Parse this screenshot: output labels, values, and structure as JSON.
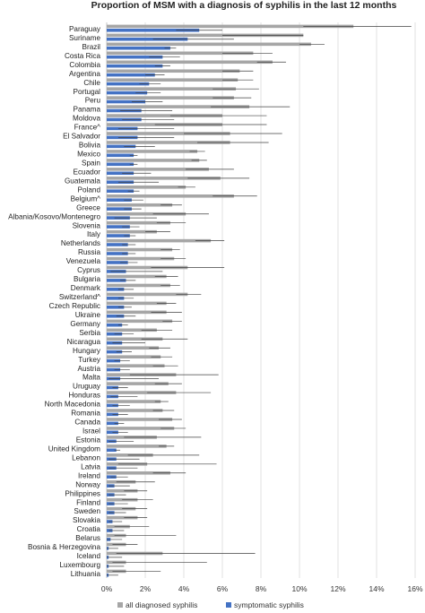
{
  "chart_data": {
    "type": "bar",
    "orientation": "horizontal",
    "title": "Proportion of MSM with a diagnosis of syphilis in the last 12 months",
    "xlim": [
      0,
      16
    ],
    "x_ticks": [
      0,
      2,
      4,
      6,
      8,
      10,
      12,
      14,
      16
    ],
    "x_tick_labels": [
      "0%",
      "2%",
      "4%",
      "6%",
      "8%",
      "10%",
      "12%",
      "14%",
      "16%"
    ],
    "grid": "vertical",
    "error_bars": true,
    "legend_position": "bottom",
    "categories": [
      "Paraguay",
      "Suriname",
      "Brazil",
      "Costa Rica",
      "Colombia",
      "Argentina",
      "Chile",
      "Portugal",
      "Peru",
      "Panama",
      "Moldova",
      "France^",
      "El Salvador",
      "Bolivia",
      "Mexico",
      "Spain",
      "Ecuador",
      "Guatemala",
      "Poland",
      "Belgium^",
      "Greece",
      "Albania/Kosovo/Montenegro",
      "Slovenia",
      "Italy",
      "Netherlands",
      "Russia",
      "Venezuela",
      "Cyprus",
      "Bulgaria",
      "Denmark",
      "Switzerland^",
      "Czech Republic",
      "Ukraine",
      "Germany",
      "Serbia",
      "Nicaragua",
      "Hungary",
      "Turkey",
      "Austria",
      "Malta",
      "Uruguay",
      "Honduras",
      "North Macedonia",
      "Romania",
      "Canada",
      "Israel",
      "Estonia",
      "United Kingdom",
      "Lebanon",
      "Latvia",
      "Ireland",
      "Norway",
      "Philippines",
      "Finland",
      "Sweden",
      "Slovakia",
      "Croatia",
      "Belarus",
      "Bosnia & Herzegovina",
      "Iceland",
      "Luxembourg",
      "Lithuania"
    ],
    "series": [
      {
        "name": "all diagnosed syphilis",
        "color": "#a6a6a6",
        "values": [
          12.8,
          10.2,
          10.6,
          7.6,
          8.6,
          6.9,
          6.8,
          6.7,
          6.6,
          7.4,
          6.0,
          6.0,
          6.4,
          6.4,
          4.7,
          4.8,
          5.3,
          5.9,
          4.1,
          6.6,
          3.4,
          4.1,
          3.3,
          2.6,
          5.4,
          3.4,
          3.5,
          4.2,
          3.1,
          3.3,
          4.2,
          3.1,
          3.1,
          3.4,
          2.6,
          2.9,
          2.7,
          2.8,
          3.0,
          3.6,
          3.2,
          3.6,
          2.8,
          2.9,
          3.4,
          3.5,
          2.6,
          3.1,
          2.4,
          2.1,
          3.3,
          1.5,
          1.6,
          1.6,
          1.5,
          1.6,
          1.2,
          1.0,
          1.0,
          2.9,
          1.0,
          1.0
        ],
        "ci": [
          [
            10.2,
            15.8
          ],
          [
            6.0,
            10.2
          ],
          [
            10.0,
            11.3
          ],
          [
            6.0,
            8.6
          ],
          [
            7.8,
            9.3
          ],
          [
            6.0,
            7.6
          ],
          [
            6.0,
            7.6
          ],
          [
            5.5,
            7.9
          ],
          [
            5.5,
            7.5
          ],
          [
            5.4,
            9.5
          ],
          [
            3.3,
            8.3
          ],
          [
            2.5,
            8.3
          ],
          [
            4.0,
            9.1
          ],
          [
            4.7,
            8.4
          ],
          [
            4.3,
            5.1
          ],
          [
            4.4,
            5.2
          ],
          [
            4.1,
            6.6
          ],
          [
            4.2,
            7.4
          ],
          [
            3.7,
            4.6
          ],
          [
            5.5,
            7.8
          ],
          [
            2.8,
            3.9
          ],
          [
            2.4,
            5.3
          ],
          [
            2.6,
            4.1
          ],
          [
            2.0,
            3.3
          ],
          [
            4.6,
            6.1
          ],
          [
            2.8,
            3.8
          ],
          [
            2.8,
            4.1
          ],
          [
            2.3,
            6.1
          ],
          [
            2.5,
            3.7
          ],
          [
            2.8,
            3.8
          ],
          [
            3.6,
            4.9
          ],
          [
            2.6,
            3.6
          ],
          [
            2.3,
            3.9
          ],
          [
            2.9,
            3.9
          ],
          [
            1.8,
            3.4
          ],
          [
            1.8,
            4.2
          ],
          [
            2.2,
            3.3
          ],
          [
            2.3,
            3.4
          ],
          [
            2.4,
            3.7
          ],
          [
            1.2,
            5.8
          ],
          [
            2.5,
            3.9
          ],
          [
            2.1,
            5.4
          ],
          [
            2.5,
            3.2
          ],
          [
            2.4,
            3.5
          ],
          [
            2.7,
            3.9
          ],
          [
            2.8,
            4.1
          ],
          [
            0.9,
            4.9
          ],
          [
            2.7,
            3.5
          ],
          [
            1.1,
            4.8
          ],
          [
            0.6,
            5.7
          ],
          [
            2.4,
            4.1
          ],
          [
            0.5,
            2.5
          ],
          [
            0.9,
            2.1
          ],
          [
            0.8,
            2.4
          ],
          [
            0.8,
            2.1
          ],
          [
            0.9,
            2.1
          ],
          [
            0.4,
            2.2
          ],
          [
            0.4,
            3.6
          ],
          [
            0.3,
            1.6
          ],
          [
            0.5,
            7.7
          ],
          [
            0.3,
            5.2
          ],
          [
            0.3,
            2.8
          ]
        ]
      },
      {
        "name": "symptomatic syphilis",
        "color": "#4472c4",
        "values": [
          4.8,
          4.2,
          3.3,
          2.9,
          2.9,
          2.5,
          2.2,
          2.1,
          2.0,
          1.8,
          1.8,
          1.6,
          1.6,
          1.5,
          1.4,
          1.4,
          1.4,
          1.4,
          1.4,
          1.3,
          1.3,
          1.2,
          1.2,
          1.2,
          1.1,
          1.1,
          1.1,
          1.0,
          1.0,
          0.9,
          0.9,
          0.9,
          0.9,
          0.8,
          0.8,
          0.8,
          0.8,
          0.7,
          0.7,
          0.7,
          0.6,
          0.6,
          0.6,
          0.6,
          0.6,
          0.6,
          0.5,
          0.5,
          0.5,
          0.5,
          0.5,
          0.4,
          0.4,
          0.4,
          0.4,
          0.3,
          0.3,
          0.2,
          0.1,
          0.1,
          0.1,
          0.1
        ],
        "ci": [
          [
            3.6,
            6.0
          ],
          [
            2.4,
            6.6
          ],
          [
            3.0,
            3.6
          ],
          [
            2.2,
            3.8
          ],
          [
            2.5,
            3.3
          ],
          [
            2.0,
            3.0
          ],
          [
            1.7,
            2.8
          ],
          [
            1.5,
            2.8
          ],
          [
            1.3,
            2.9
          ],
          [
            0.7,
            3.4
          ],
          [
            0.8,
            3.5
          ],
          [
            0.6,
            3.5
          ],
          [
            0.6,
            3.5
          ],
          [
            0.9,
            2.5
          ],
          [
            1.2,
            1.6
          ],
          [
            1.2,
            1.6
          ],
          [
            0.8,
            2.3
          ],
          [
            0.6,
            2.7
          ],
          [
            1.1,
            1.7
          ],
          [
            0.9,
            1.9
          ],
          [
            0.9,
            1.8
          ],
          [
            0.4,
            2.6
          ],
          [
            0.8,
            1.7
          ],
          [
            0.9,
            1.5
          ],
          [
            0.8,
            1.5
          ],
          [
            0.8,
            1.5
          ],
          [
            0.7,
            1.6
          ],
          [
            0.2,
            2.9
          ],
          [
            0.7,
            1.5
          ],
          [
            0.6,
            1.4
          ],
          [
            0.6,
            1.4
          ],
          [
            0.6,
            1.3
          ],
          [
            0.5,
            1.5
          ],
          [
            0.6,
            1.1
          ],
          [
            0.4,
            1.4
          ],
          [
            0.3,
            2.0
          ],
          [
            0.5,
            1.3
          ],
          [
            0.4,
            1.2
          ],
          [
            0.4,
            1.2
          ],
          [
            0.1,
            2.7
          ],
          [
            0.3,
            1.1
          ],
          [
            0.2,
            1.6
          ],
          [
            0.3,
            1.2
          ],
          [
            0.3,
            1.1
          ],
          [
            0.4,
            0.9
          ],
          [
            0.3,
            1.1
          ],
          [
            0.1,
            1.4
          ],
          [
            0.4,
            0.7
          ],
          [
            0.1,
            1.7
          ],
          [
            0.1,
            1.6
          ],
          [
            0.2,
            1.1
          ],
          [
            0.1,
            1.2
          ],
          [
            0.1,
            1.0
          ],
          [
            0.1,
            1.1
          ],
          [
            0.1,
            1.0
          ],
          [
            0.1,
            0.8
          ],
          [
            0.1,
            0.9
          ],
          [
            0.0,
            0.8
          ],
          [
            0.0,
            0.6
          ],
          [
            0.0,
            0.8
          ],
          [
            0.0,
            0.9
          ],
          [
            0.0,
            0.6
          ]
        ]
      }
    ]
  }
}
